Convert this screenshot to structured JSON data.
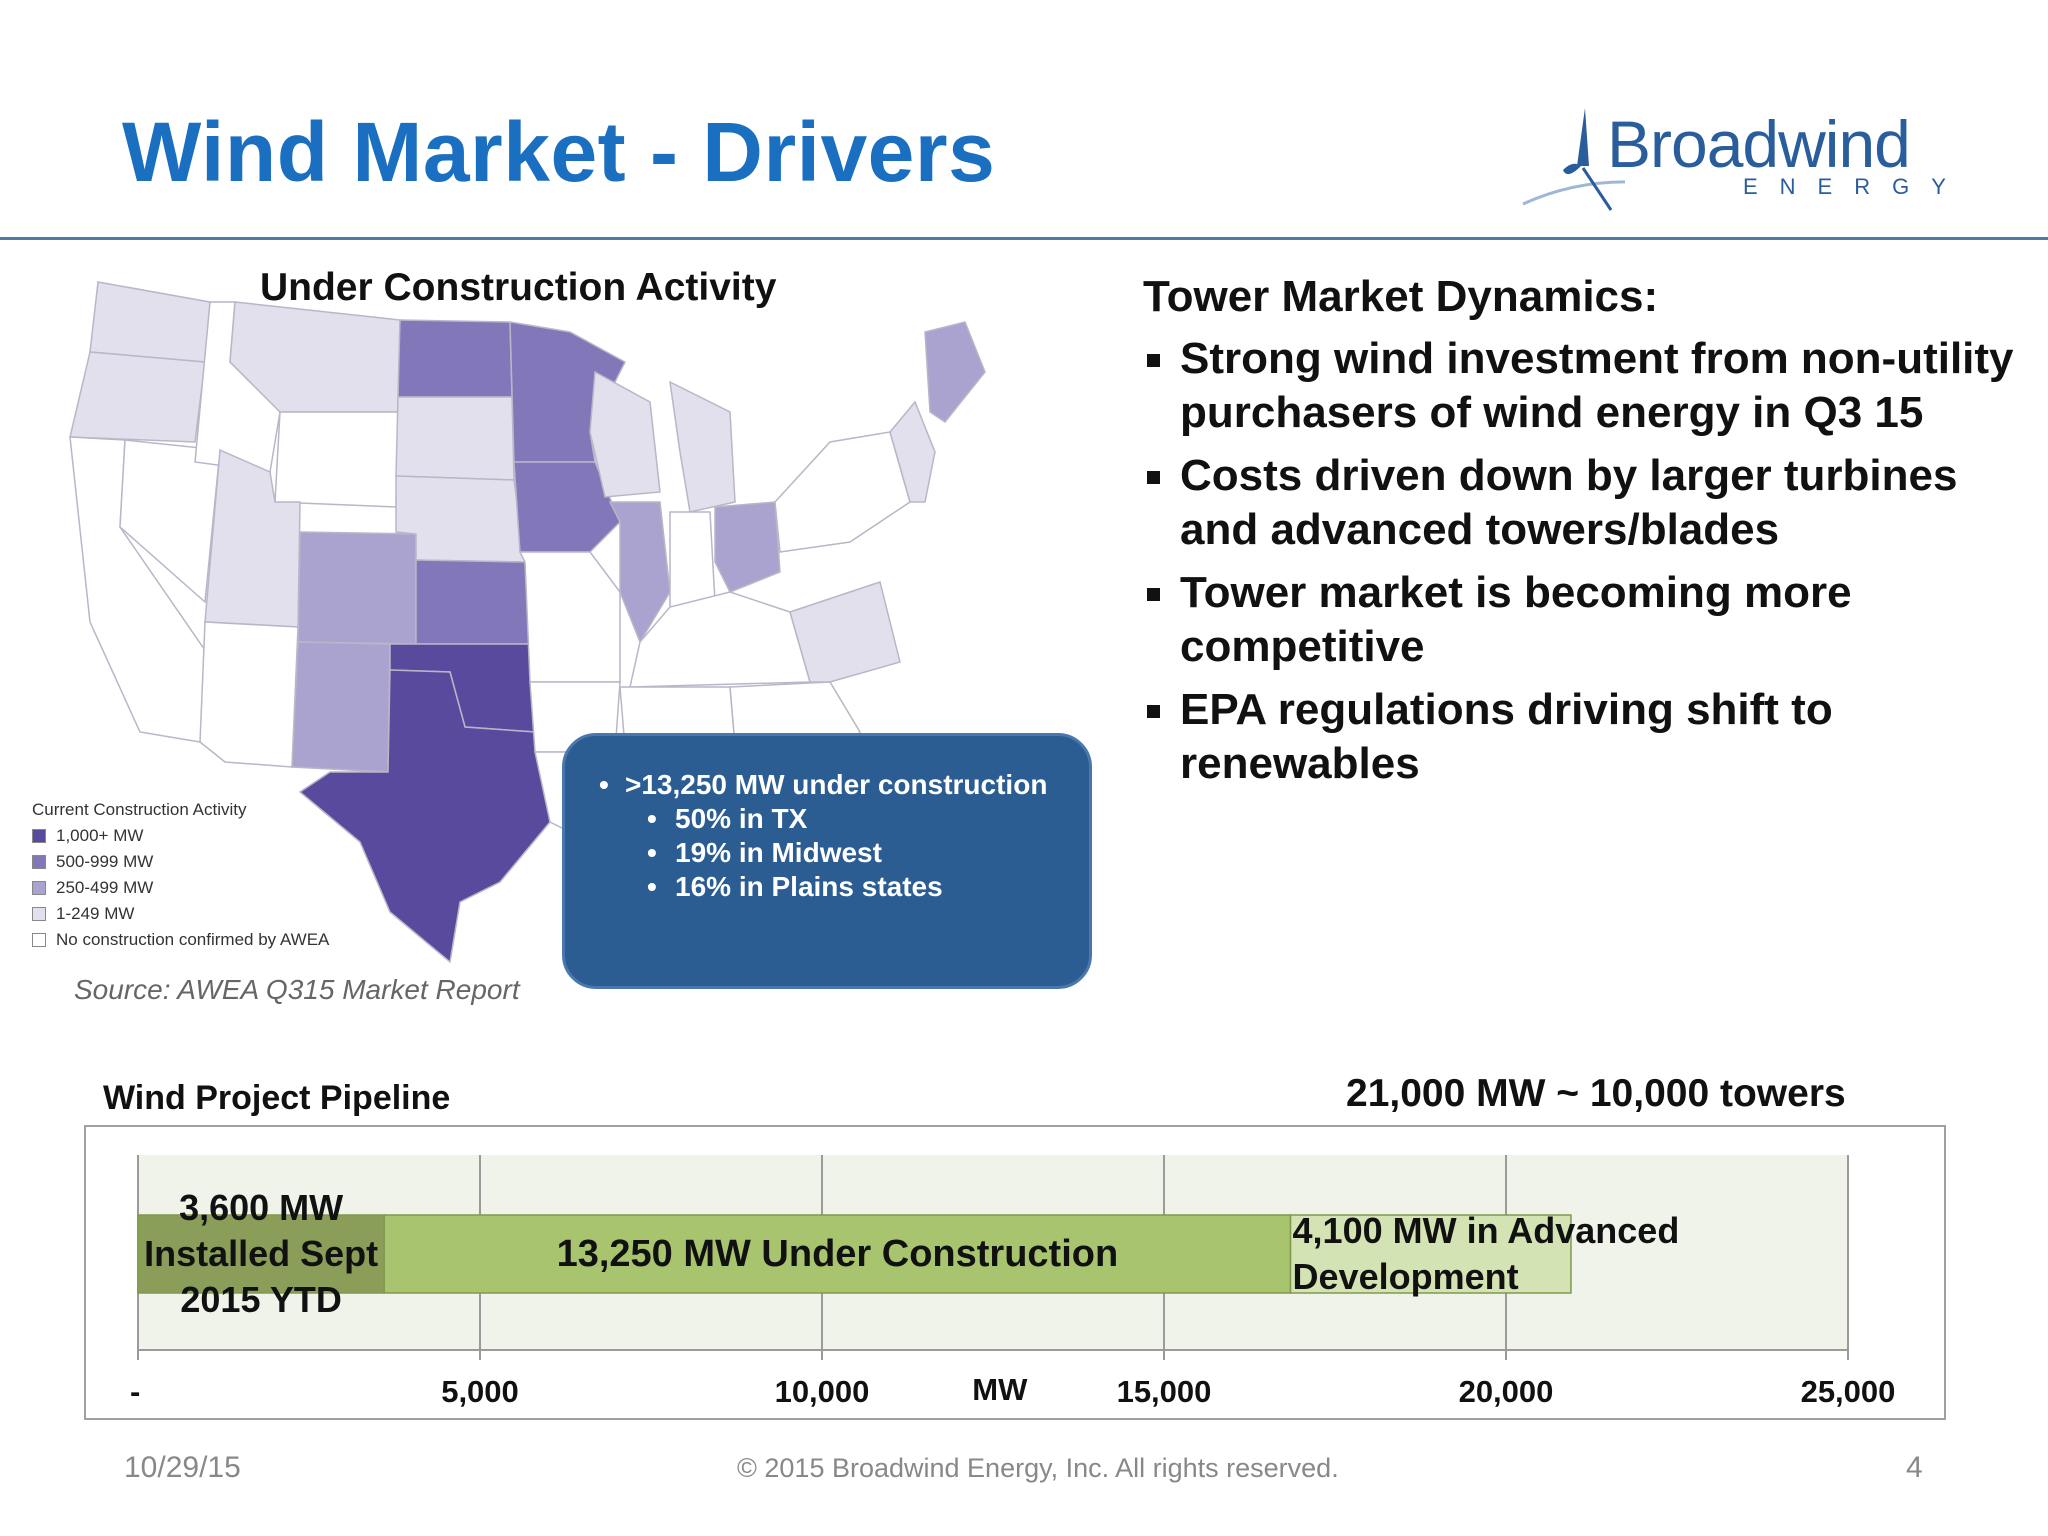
{
  "header": {
    "title": "Wind Market - Drivers",
    "logo_word": "Broadwind",
    "logo_sub": "ENERGY"
  },
  "map": {
    "title": "Under Construction Activity",
    "legend_title": "Current Construction Activity",
    "legend": [
      {
        "label": "1,000+ MW",
        "color": "#5a4a9e"
      },
      {
        "label": "500-999 MW",
        "color": "#8277b9"
      },
      {
        "label": "250-499 MW",
        "color": "#aaa3d0"
      },
      {
        "label": "1-249 MW",
        "color": "#e2e0ec"
      },
      {
        "label": "No construction confirmed by AWEA",
        "color": "#ffffff"
      }
    ],
    "source": "Source: AWEA Q315 Market Report"
  },
  "callout": {
    "main": ">13,250 MW under construction",
    "sub": [
      "50% in TX",
      "19% in Midwest",
      "16% in Plains states"
    ]
  },
  "dynamics": {
    "title": "Tower Market Dynamics:",
    "items": [
      "Strong wind investment from non-utility purchasers of wind energy in Q3 15",
      "Costs driven down by larger turbines and advanced towers/blades",
      "Tower market is becoming more competitive",
      "EPA regulations driving shift to renewables"
    ]
  },
  "pipeline": {
    "title": "Wind Project Pipeline",
    "towers_note": "21,000 MW ~ 10,000 towers"
  },
  "chart_data": {
    "type": "bar",
    "orientation": "horizontal",
    "stacked": true,
    "series": [
      {
        "name": "3,600 MW Installed Sept 2015 YTD",
        "values": [
          3600
        ],
        "color": "#8a9e5a"
      },
      {
        "name": "13,250 MW Under Construction",
        "values": [
          13250
        ],
        "color": "#a9c46e"
      },
      {
        "name": "4,100 MW in Advanced Development",
        "values": [
          4100
        ],
        "color": "#d3e3b3"
      }
    ],
    "xlim": [
      0,
      25000
    ],
    "xticks": [
      0,
      5000,
      10000,
      15000,
      20000,
      25000
    ],
    "xtick_labels": [
      "-",
      "5,000",
      "10,000",
      "15,000",
      "20,000",
      "25,000"
    ],
    "xlabel": "MW",
    "grid": true,
    "plot_bg": "#eff3ea"
  },
  "footer": {
    "date": "10/29/15",
    "copyright": "© 2015 Broadwind Energy, Inc. All rights reserved.",
    "page": "4"
  }
}
